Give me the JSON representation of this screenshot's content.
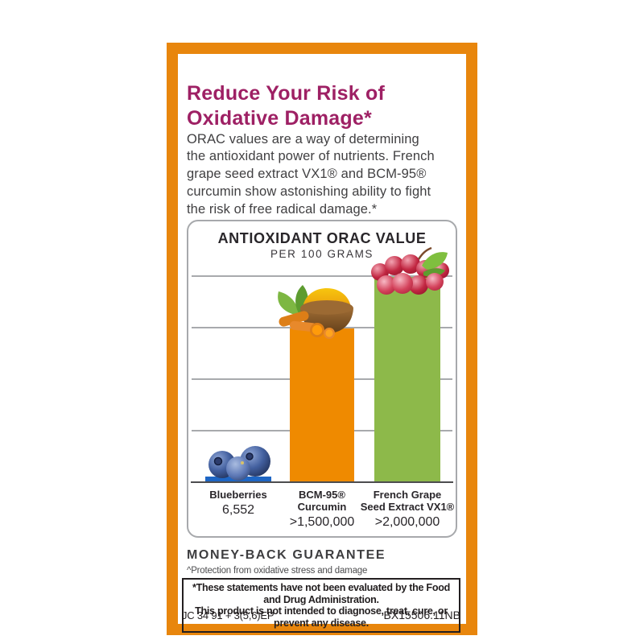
{
  "headline": {
    "text": "Reduce Your Risk of\nOxidative Damage*"
  },
  "intro": {
    "text": "ORAC values are a way of determining\nthe antioxidant power of nutrients. French\ngrape seed extract VX1® and BCM-95®\ncurcumin show astonishing ability to fight\nthe risk of free radical damage.*"
  },
  "chart_data": {
    "type": "bar",
    "title": "ANTIOXIDANT ORAC VALUE",
    "subtitle": "PER 100 GRAMS",
    "categories": [
      "Blueberries",
      "BCM-95® Curcumin",
      "French Grape Seed Extract VX1®"
    ],
    "category_lines": [
      [
        "Blueberries"
      ],
      [
        "BCM-95®",
        "Curcumin"
      ],
      [
        "French Grape",
        "Seed Extract VX1®"
      ]
    ],
    "values": [
      6552,
      1500000,
      2000000
    ],
    "value_labels": [
      "6,552",
      ">1,500,000",
      ">2,000,000"
    ],
    "ylim": [
      0,
      2000000
    ],
    "grid": true,
    "gridline_count": 4,
    "legend": "none",
    "bar_colors": [
      "#1e66c4",
      "#ef8a00",
      "#8db94a"
    ],
    "bar_images": [
      "blueberries",
      "turmeric-powder-bowl",
      "red-grapes"
    ]
  },
  "guarantee": {
    "title": "MONEY-BACK GUARANTEE",
    "footnote": "^Protection from oxidative stress and damage"
  },
  "disclaimer": {
    "text": "*These statements have not been evaluated by the Food and Drug Administration.\nThis product is not intended to diagnose, treat, cure, or prevent any disease."
  },
  "codes": {
    "left": "JC 34 91 + 3(5,6)EP",
    "right": "BX15506.11NB"
  },
  "colors": {
    "frame_orange": "#e8860d",
    "headline_magenta": "#9e2064",
    "bar_blue": "#1e66c4",
    "bar_orange": "#ef8a00",
    "bar_green": "#8db94a",
    "body_text": "#414042"
  }
}
